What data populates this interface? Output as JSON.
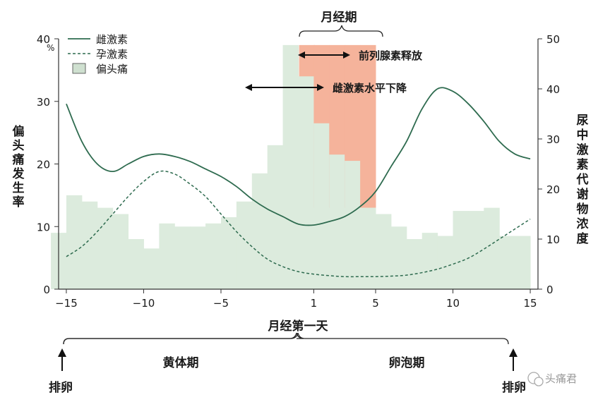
{
  "chart_data": {
    "type": "bar+line",
    "x_ticks": [
      -15,
      -10,
      -5,
      1,
      5,
      10,
      15
    ],
    "xlabel": "月经第一天",
    "left_axis": {
      "label": "偏头痛发生率",
      "unit": "%",
      "ticks": [
        0,
        10,
        20,
        30,
        40
      ],
      "range": [
        0,
        40
      ]
    },
    "right_axis": {
      "label": "尿中激素代谢物浓度",
      "ticks": [
        0,
        10,
        20,
        30,
        40,
        50
      ],
      "range": [
        0,
        50
      ]
    },
    "legend": [
      {
        "name": "雌激素",
        "style": "solid-line"
      },
      {
        "name": "孕激素",
        "style": "dashed-line"
      },
      {
        "name": "偏头痛",
        "style": "box"
      }
    ],
    "migraine": {
      "name": "偏头痛",
      "x": [
        -15.5,
        -14.5,
        -13.5,
        -12.5,
        -11.5,
        -10.5,
        -9.5,
        -8.5,
        -7.5,
        -6.5,
        -5.5,
        -4.5,
        -3.5,
        -2.5,
        -1.5,
        -0.5,
        0.5,
        1.5,
        2.5,
        3.5,
        4.5,
        5.5,
        6.5,
        7.5,
        8.5,
        9.5,
        10.5,
        11.5,
        12.5,
        13.5,
        14.5
      ],
      "values": [
        9,
        15,
        14,
        13,
        12,
        8,
        6.5,
        10.5,
        10,
        10,
        10.5,
        11.5,
        14,
        18.5,
        23,
        39,
        34,
        26.5,
        21.5,
        20.5,
        13,
        12,
        10,
        8,
        9,
        8.5,
        12.5,
        12.5,
        13,
        8.5,
        8.5
      ],
      "menstrual_highlight": [
        1,
        2,
        3,
        4
      ]
    },
    "estrogen": {
      "name": "雌激素",
      "x": [
        -15,
        -14,
        -13,
        -12,
        -11,
        -10,
        -9,
        -8,
        -7,
        -6,
        -5,
        -4,
        -3,
        -2,
        -1,
        0,
        1,
        2,
        3,
        4,
        5,
        6,
        7,
        8,
        9,
        10,
        11,
        12,
        13,
        14,
        15
      ],
      "values": [
        37,
        29.5,
        25,
        23.5,
        25,
        26.5,
        27,
        26.5,
        25.5,
        24,
        22.5,
        20.5,
        18,
        16,
        14.5,
        13,
        12.8,
        13.5,
        14.5,
        16.5,
        19.5,
        24.5,
        29.5,
        36,
        40,
        39.5,
        37,
        33.5,
        29.5,
        27,
        26
      ],
      "axis": "right"
    },
    "progesterone": {
      "name": "孕激素",
      "x": [
        -15,
        -14,
        -13,
        -12,
        -11,
        -10,
        -9,
        -8,
        -7,
        -6,
        -5,
        -4,
        -3,
        -2,
        -1,
        0,
        1,
        2,
        3,
        4,
        5,
        6,
        7,
        8,
        9,
        10,
        11,
        12,
        13,
        14,
        15
      ],
      "values": [
        6.5,
        8.5,
        11.5,
        15,
        18.5,
        21.5,
        23.5,
        23,
        21,
        18.5,
        15,
        11.5,
        8.5,
        6,
        4.5,
        3.5,
        3,
        2.7,
        2.5,
        2.5,
        2.5,
        2.6,
        2.8,
        3.3,
        4,
        5,
        6.2,
        8,
        10,
        12,
        14
      ],
      "axis": "right"
    },
    "annotations": {
      "menstruation": "月经期",
      "prostaglandin": "前列腺素释放",
      "estrogen_drop": "雌激素水平下降",
      "luteal": "黄体期",
      "follicular": "卵泡期",
      "ovulation_left": "排卵",
      "ovulation_right": "排卵"
    },
    "watermark": "头痛君",
    "colors": {
      "migraine_fill": "#dcebdd",
      "menstrual_fill": "#f5b39b",
      "estrogen_line": "#2e6b4f",
      "progesterone_line": "#2e6b4f",
      "legend_box": "#cfe0d0"
    }
  }
}
